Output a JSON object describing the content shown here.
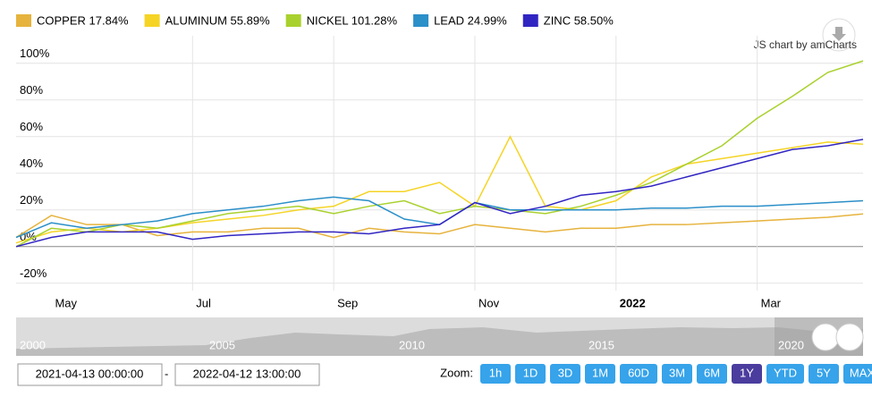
{
  "chart_data": {
    "type": "line",
    "categories": [
      null,
      "May",
      null,
      null,
      null,
      "Jul",
      null,
      null,
      null,
      "Sep",
      null,
      null,
      null,
      "Nov",
      null,
      null,
      null,
      "2022",
      null,
      null,
      null,
      "Mar",
      null,
      null,
      null
    ],
    "series": [
      {
        "name": "COPPER 17.84%",
        "color": "#e6b33d",
        "values": [
          5,
          17,
          12,
          12,
          6,
          8,
          8,
          10,
          10,
          5,
          10,
          8,
          7,
          12,
          10,
          8,
          10,
          10,
          12,
          12,
          13,
          14,
          15,
          16,
          17.84
        ]
      },
      {
        "name": "ALUMINUM 55.89%",
        "color": "#f5d426",
        "values": [
          2,
          8,
          10,
          8,
          10,
          13,
          15,
          17,
          20,
          22,
          30,
          30,
          35,
          22,
          60,
          22,
          20,
          25,
          38,
          45,
          48,
          51,
          54,
          57,
          55.89
        ]
      },
      {
        "name": "NICKEL 101.28%",
        "color": "#a9d12d",
        "values": [
          0,
          10,
          8,
          12,
          10,
          14,
          18,
          20,
          22,
          18,
          22,
          25,
          18,
          22,
          20,
          18,
          22,
          28,
          35,
          45,
          55,
          70,
          82,
          95,
          101.28
        ]
      },
      {
        "name": "LEAD 24.99%",
        "color": "#2b8fc8",
        "values": [
          5,
          13,
          10,
          12,
          14,
          18,
          20,
          22,
          25,
          27,
          25,
          15,
          12,
          24,
          20,
          20,
          20,
          20,
          21,
          21,
          22,
          22,
          23,
          24,
          24.99
        ]
      },
      {
        "name": "ZINC 58.50%",
        "color": "#3125c2",
        "values": [
          0,
          5,
          8,
          8,
          8,
          4,
          6,
          7,
          8,
          8,
          7,
          10,
          12,
          24,
          18,
          22,
          28,
          30,
          33,
          38,
          43,
          48,
          53,
          55,
          58.5
        ]
      }
    ],
    "ylim": [
      -24,
      115
    ],
    "yticks": [
      {
        "value": -20,
        "label": "-20%"
      },
      {
        "value": 0,
        "label": "0%"
      },
      {
        "value": 20,
        "label": "20%"
      },
      {
        "value": 40,
        "label": "40%"
      },
      {
        "value": 60,
        "label": "60%"
      },
      {
        "value": 80,
        "label": "80%"
      },
      {
        "value": 100,
        "label": "100%"
      }
    ],
    "grid": true
  },
  "ui": {
    "credit": "JS chart by amCharts",
    "navigator_labels": [
      "2000",
      "2005",
      "2010",
      "2015",
      "2020"
    ],
    "date_from": "2021-04-13 00:00:00",
    "date_separator": "-",
    "date_to": "2022-04-12 13:00:00",
    "zoom_label": "Zoom:",
    "zoom_buttons": [
      "1h",
      "1D",
      "3D",
      "1M",
      "60D",
      "3M",
      "6M",
      "1Y",
      "YTD",
      "5Y",
      "MAX"
    ],
    "zoom_selected": "1Y"
  }
}
